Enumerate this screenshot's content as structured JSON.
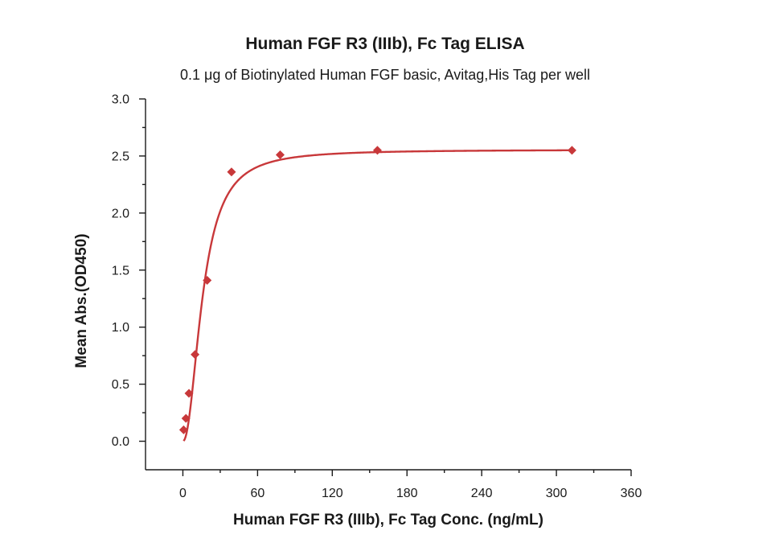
{
  "chart_data": {
    "type": "scatter",
    "title": "Human FGF R3 (IIIb), Fc Tag ELISA",
    "subtitle": "0.1 μg of Biotinylated Human FGF basic, Avitag,His Tag per well",
    "xlabel": "Human FGF R3 (IIIb), Fc Tag Conc. (ng/mL)",
    "ylabel": "Mean Abs.(OD450)",
    "xlim": [
      -30,
      360
    ],
    "ylim": [
      -0.25,
      3.0
    ],
    "x_ticks": [
      0,
      60,
      120,
      180,
      240,
      300,
      360
    ],
    "y_ticks": [
      0.0,
      0.5,
      1.0,
      1.5,
      2.0,
      2.5,
      3.0
    ],
    "x_tick_labels": [
      "0",
      "60",
      "120",
      "180",
      "240",
      "300",
      "360"
    ],
    "y_tick_labels": [
      "0.0",
      "0.5",
      "1.0",
      "1.5",
      "2.0",
      "2.5",
      "3.0"
    ],
    "grid": false,
    "marker_color": "#c8383a",
    "line_color": "#c8383a",
    "series": [
      {
        "x": [
          0.61,
          2.44,
          4.88,
          9.77,
          19.53,
          39.06,
          78.13,
          156.25,
          312.5
        ],
        "y": [
          0.1,
          0.2,
          0.42,
          0.76,
          1.41,
          2.36,
          2.51,
          2.55,
          2.55
        ]
      }
    ],
    "fit": {
      "type": "4PL",
      "bottom": 0.0,
      "top": 2.555,
      "ec50": 16.0,
      "hill": 2.1
    }
  }
}
